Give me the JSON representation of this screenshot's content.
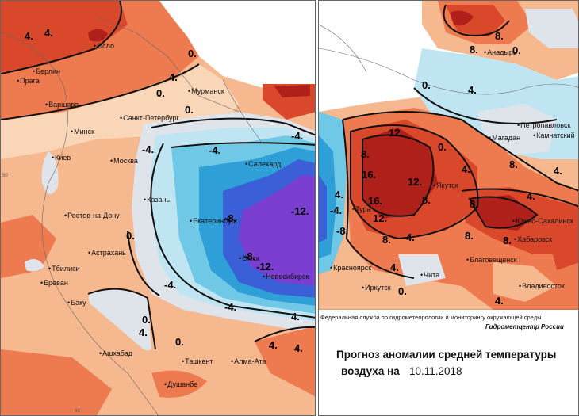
{
  "title": {
    "line1": "Прогноз аномалии средней температуры",
    "line2": "воздуха на",
    "date": "10.11.2018"
  },
  "credits": {
    "agency": "Федеральная служба по гидрометеорологии и мониторингу окружающей среды",
    "center": "Гидрометцентр России"
  },
  "colors": {
    "warm_strong": "#d9482a",
    "warm_mid": "#ee7a50",
    "warm_light": "#f6b88f",
    "warm_pale": "#f9d6b8",
    "neutral": "#dfe3ea",
    "cool_light": "#bfe5f2",
    "cool_mid": "#6fc8e6",
    "cool_strong": "#2f9fd8",
    "cold_blue": "#3b5fd6",
    "cold_deep": "#7a3fd0",
    "hot_deep": "#b0201a"
  },
  "left_map": {
    "cities": [
      "Осло",
      "Берлин",
      "Прага",
      "Варшава",
      "Мурманск",
      "Санкт-Петербург",
      "Минск",
      "Киев",
      "Москва",
      "Салехард",
      "Казань",
      "Екатеринбург",
      "Ростов-на-Дону",
      "Астрахань",
      "Омск",
      "Новосибирск",
      "Тбилиси",
      "Ереван",
      "Баку",
      "Ашхабад",
      "Ташкент",
      "Алма-Ата",
      "Душанбе"
    ],
    "isolines": [
      "4.",
      "4.",
      "0.",
      "4.",
      "0.",
      "-4.",
      "-4.",
      "-4.",
      "-8.",
      "-12.",
      "-8.",
      "-12.",
      "0.",
      "-4.",
      "-4.",
      "0.",
      "4.",
      "0.",
      "4.",
      "4.",
      "0.",
      "4."
    ],
    "ticks": [
      "50",
      "60"
    ]
  },
  "right_map": {
    "cities": [
      "Анадырь",
      "Петропавловск",
      "Камчатский",
      "Магадан",
      "Якутск",
      "Тура",
      "Красноярск",
      "Иркутск",
      "Чита",
      "Благовещенск",
      "Хабаровск",
      "Южно-Сахалинск",
      "Владивосток"
    ],
    "isolines": [
      "8.",
      "8.",
      "0.",
      "0.",
      "4.",
      "8.",
      "12.",
      "16.",
      "16.",
      "12.",
      "12.",
      "8.",
      "4.",
      "8.",
      "8.",
      "8.",
      "8.",
      "4.",
      "0.",
      "4.",
      "8.",
      "-4.",
      "-8.",
      "4.",
      "4.",
      "4.",
      "0.",
      "4."
    ]
  }
}
